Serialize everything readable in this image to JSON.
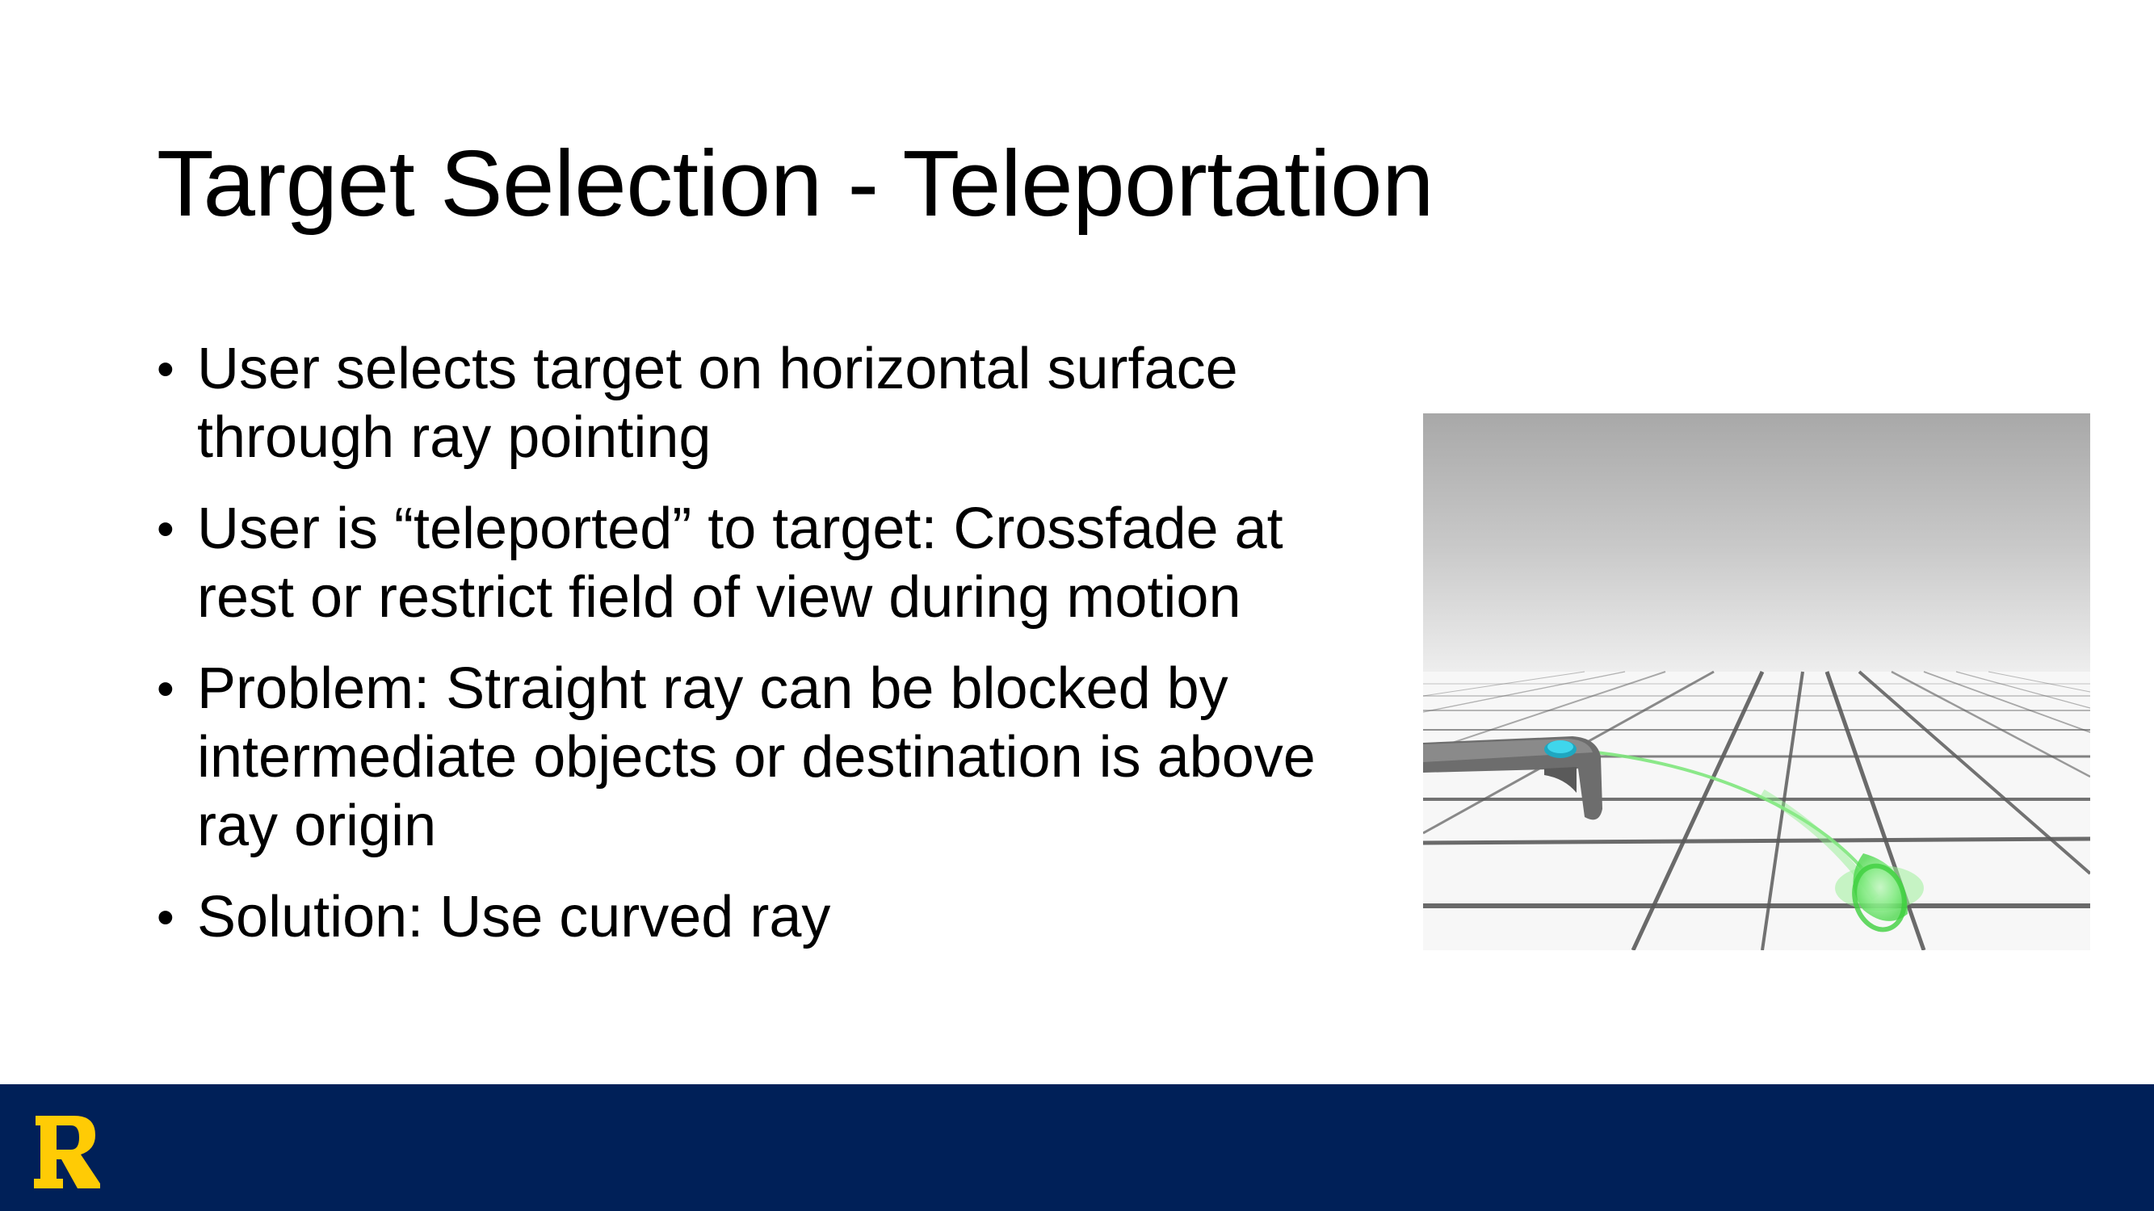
{
  "slide": {
    "title": "Target Selection - Teleportation",
    "bullet_marker": "•",
    "bullets": [
      "User selects target on horizontal surface through ray pointing",
      "User is “teleported” to target: Crossfade at rest or restrict field of view during motion",
      "Problem: Straight ray can be blocked by intermediate objects or destination is above ray origin",
      "Solution: Use curved ray"
    ]
  },
  "image": {
    "name": "vr-teleport-curved-ray-illustration"
  },
  "footer": {
    "logo_letter": "R",
    "logo_color": "#FFCB05",
    "background_color": "#002058"
  },
  "colors": {
    "ray": "#55e05a",
    "controller_button": "#2ec7e0",
    "grid_line": "#555555"
  }
}
